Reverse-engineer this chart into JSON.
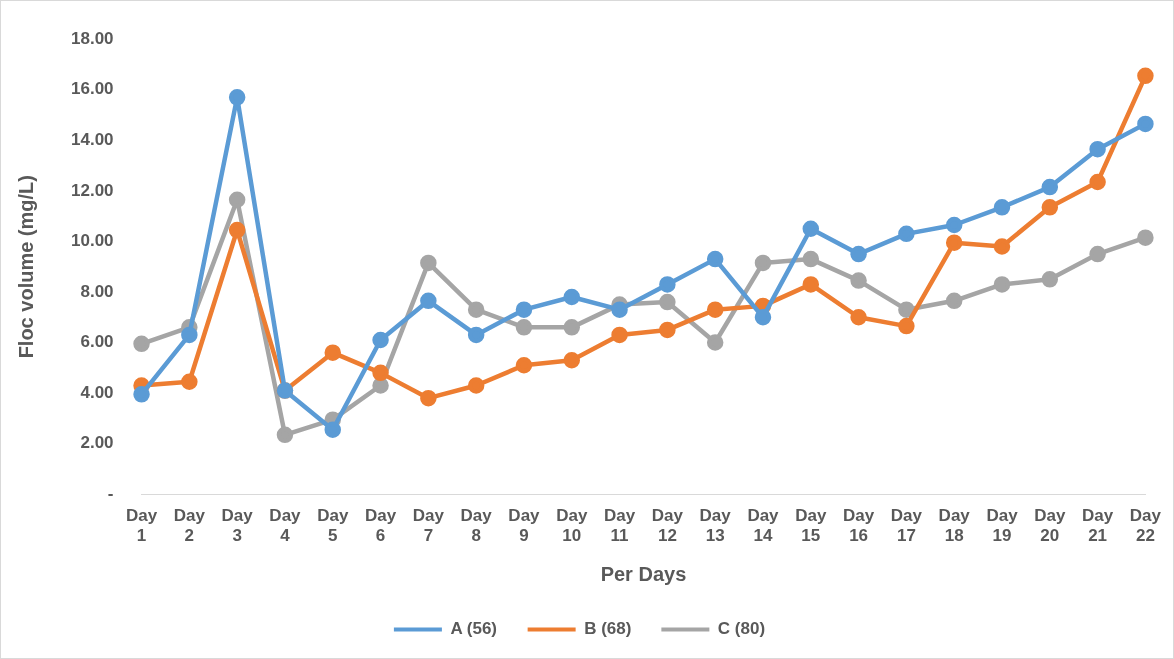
{
  "chart_data": {
    "type": "line",
    "xlabel": "Per Days",
    "ylabel": "Floc volume (mg/L)",
    "categories": [
      "Day 1",
      "Day 2",
      "Day 3",
      "Day 4",
      "Day 5",
      "Day 6",
      "Day 7",
      "Day 8",
      "Day 9",
      "Day 10",
      "Day 11",
      "Day 12",
      "Day 13",
      "Day 14",
      "Day 15",
      "Day 16",
      "Day 17",
      "Day 18",
      "Day 19",
      "Day 20",
      "Day 21",
      "Day 22"
    ],
    "series": [
      {
        "name": "A (56)",
        "color": "#5b9bd5",
        "values": [
          3.95,
          6.3,
          15.7,
          4.1,
          2.55,
          6.1,
          7.65,
          6.3,
          7.3,
          7.8,
          7.3,
          8.3,
          9.3,
          7.0,
          10.5,
          9.5,
          10.3,
          10.65,
          11.35,
          12.15,
          13.65,
          14.65
        ]
      },
      {
        "name": "B (68)",
        "color": "#ed7d31",
        "values": [
          4.3,
          4.45,
          10.45,
          4.1,
          5.6,
          4.8,
          3.8,
          4.3,
          5.1,
          5.3,
          6.3,
          6.5,
          7.3,
          7.45,
          8.3,
          7.0,
          6.65,
          9.95,
          9.8,
          11.35,
          12.35,
          16.55
        ]
      },
      {
        "name": "C (80)",
        "color": "#a5a5a5",
        "values": [
          5.95,
          6.6,
          11.65,
          2.35,
          2.95,
          4.3,
          9.15,
          7.3,
          6.6,
          6.6,
          7.5,
          7.6,
          6.0,
          9.15,
          9.3,
          8.45,
          7.3,
          7.65,
          8.3,
          8.5,
          9.5,
          10.15
        ]
      }
    ],
    "ylim": [
      0,
      18
    ],
    "yticks": [
      {
        "value": 0,
        "label": "-"
      },
      {
        "value": 2,
        "label": "2.00"
      },
      {
        "value": 4,
        "label": "4.00"
      },
      {
        "value": 6,
        "label": "6.00"
      },
      {
        "value": 8,
        "label": "8.00"
      },
      {
        "value": 10,
        "label": "10.00"
      },
      {
        "value": 12,
        "label": "12.00"
      },
      {
        "value": 14,
        "label": "14.00"
      },
      {
        "value": 16,
        "label": "16.00"
      },
      {
        "value": 18,
        "label": "18.00"
      }
    ],
    "grid": false,
    "legend": "bottom",
    "marker": "circle",
    "line_style": "solid"
  }
}
